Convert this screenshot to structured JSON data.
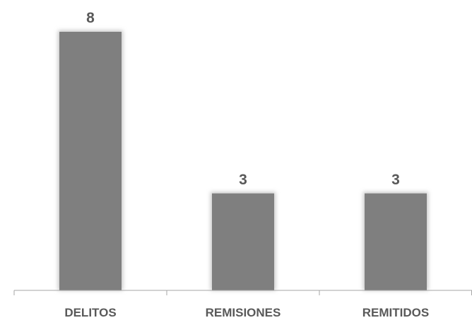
{
  "chart_data": {
    "type": "bar",
    "categories": [
      "DELITOS",
      "REMISIONES",
      "REMITIDOS"
    ],
    "values": [
      8,
      3,
      3
    ],
    "data_labels": [
      "8",
      "3",
      "3"
    ],
    "title": "",
    "xlabel": "",
    "ylabel": "",
    "ylim": [
      0,
      8
    ],
    "grid": false,
    "legend": "none",
    "colors": {
      "bar": "#7f7f7f",
      "bar_glow": "#c8c8c8",
      "label": "#595959",
      "axis": "#a6a6a6"
    }
  }
}
